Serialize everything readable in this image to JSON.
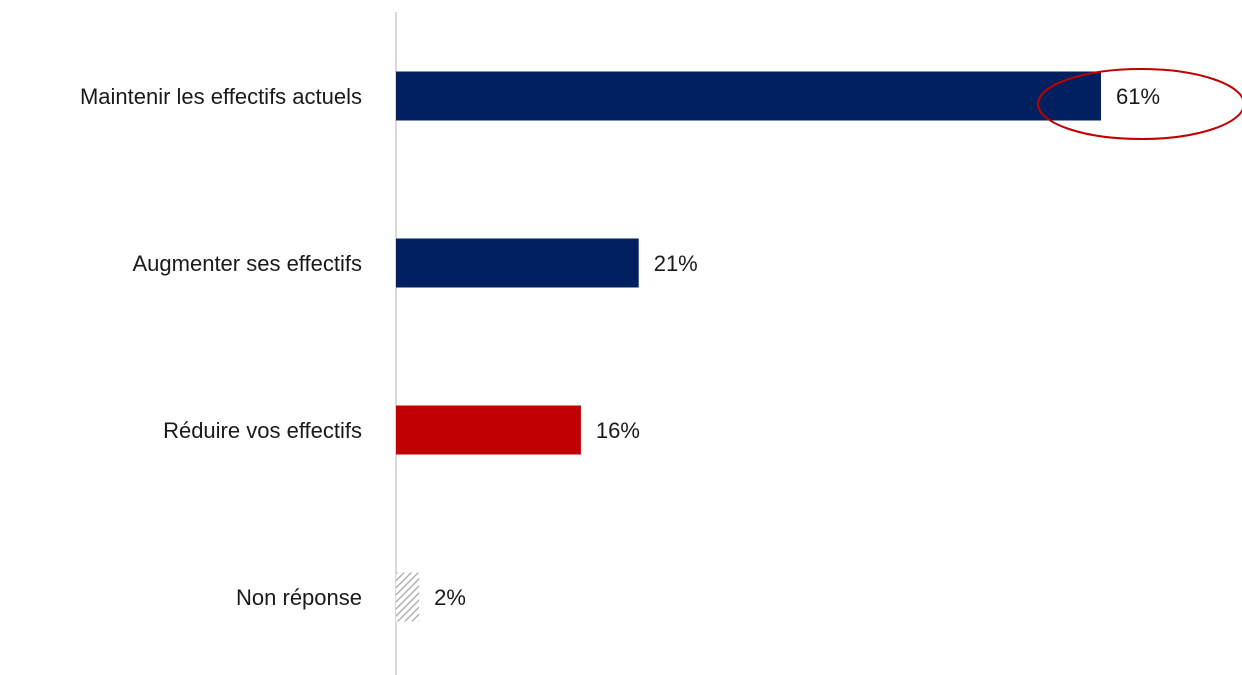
{
  "chart_data": {
    "type": "bar",
    "orientation": "horizontal",
    "categories": [
      "Maintenir les effectifs actuels",
      "Augmenter ses effectifs",
      "Réduire vos effectifs",
      "Non réponse"
    ],
    "values": [
      61,
      21,
      16,
      2
    ],
    "value_labels": [
      "61%",
      "21%",
      "16%",
      "2%"
    ],
    "unit": "%",
    "xlim": [
      0,
      61
    ],
    "grid": false,
    "bar_colors": [
      "#002060",
      "#002060",
      "#c00000",
      "hatched-grey"
    ],
    "highlight": {
      "category": "Maintenir les effectifs actuels",
      "shape": "ellipse",
      "color": "#c00000"
    }
  }
}
